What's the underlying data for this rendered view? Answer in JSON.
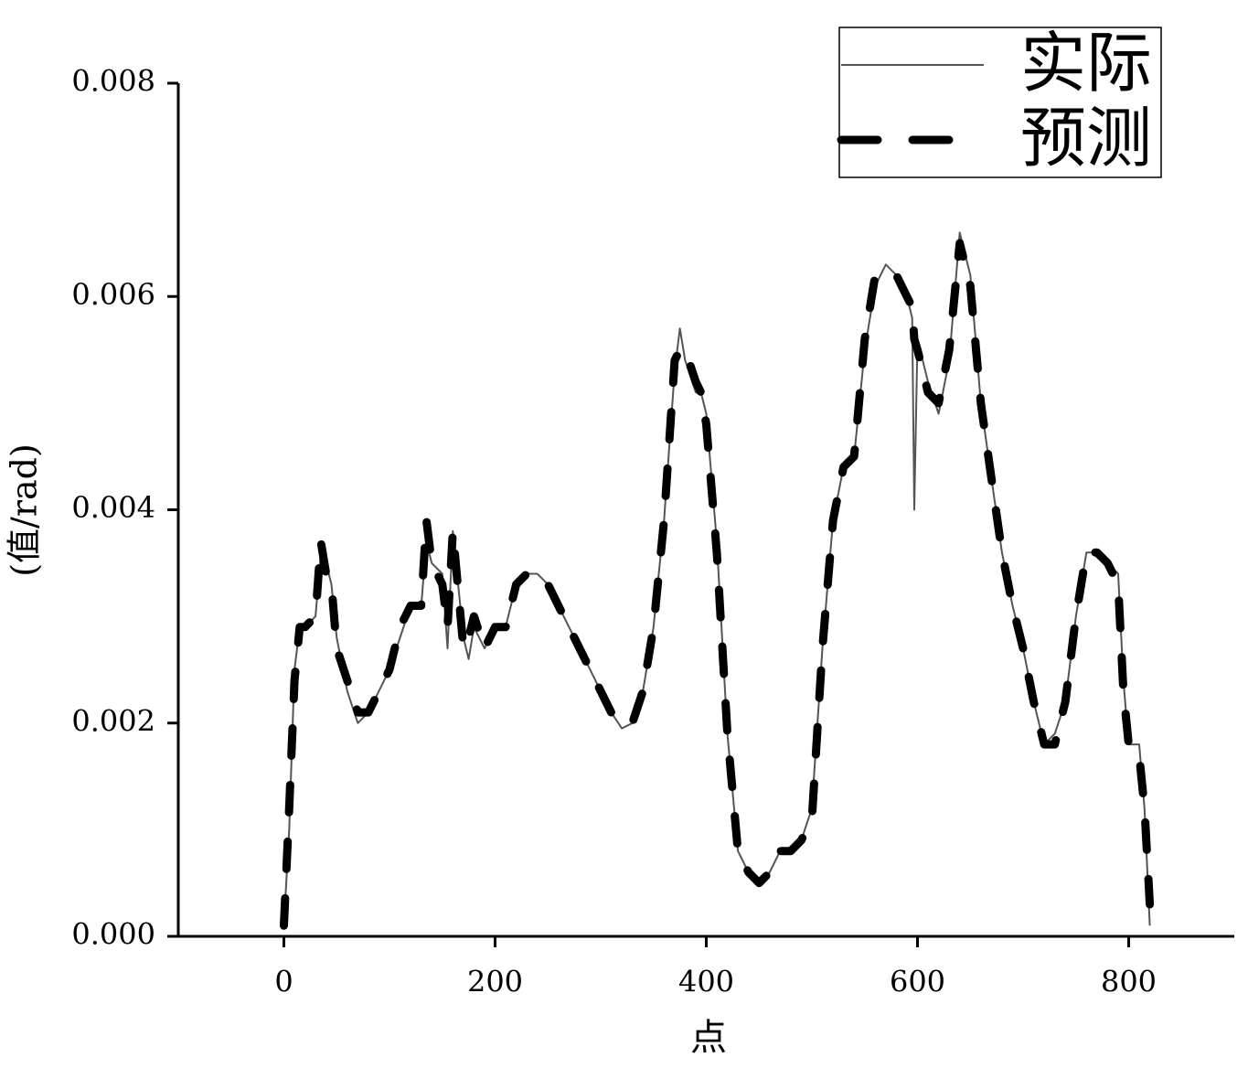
{
  "chart_data": {
    "type": "line",
    "x_label": "点",
    "y_label": "(值/rad)",
    "x": [
      0,
      5,
      10,
      15,
      20,
      30,
      35,
      40,
      45,
      50,
      60,
      70,
      80,
      90,
      100,
      110,
      120,
      130,
      135,
      140,
      150,
      155,
      160,
      170,
      175,
      180,
      190,
      200,
      210,
      220,
      230,
      240,
      250,
      260,
      270,
      280,
      290,
      300,
      310,
      320,
      330,
      340,
      350,
      360,
      370,
      375,
      380,
      390,
      395,
      400,
      410,
      420,
      430,
      440,
      450,
      460,
      470,
      480,
      490,
      500,
      510,
      520,
      530,
      540,
      550,
      560,
      570,
      580,
      590,
      595,
      597,
      600,
      610,
      620,
      630,
      640,
      650,
      660,
      670,
      680,
      690,
      700,
      710,
      720,
      730,
      740,
      750,
      760,
      770,
      780,
      790,
      795,
      800,
      810,
      815,
      820
    ],
    "series": [
      {
        "name": "实际",
        "color": "#555555",
        "line_style": "solid",
        "values": [
          0.0001,
          0.001,
          0.0025,
          0.0029,
          0.0029,
          0.003,
          0.0036,
          0.0035,
          0.0033,
          0.0028,
          0.0023,
          0.002,
          0.0021,
          0.0023,
          0.0025,
          0.0028,
          0.0031,
          0.0031,
          0.0037,
          0.0035,
          0.0034,
          0.0027,
          0.0038,
          0.0028,
          0.0026,
          0.0029,
          0.0027,
          0.0029,
          0.0029,
          0.0033,
          0.0034,
          0.0034,
          0.0033,
          0.0031,
          0.0029,
          0.0027,
          0.0025,
          0.0023,
          0.0021,
          0.00195,
          0.002,
          0.0023,
          0.0029,
          0.0039,
          0.0053,
          0.0057,
          0.0054,
          0.0051,
          0.0051,
          0.0049,
          0.0037,
          0.0019,
          0.0008,
          0.0006,
          0.0005,
          0.0006,
          0.0008,
          0.0008,
          0.0009,
          0.0012,
          0.0027,
          0.0039,
          0.0044,
          0.0045,
          0.0055,
          0.0061,
          0.0063,
          0.0062,
          0.006,
          0.0058,
          0.004,
          0.0056,
          0.0052,
          0.0049,
          0.0054,
          0.0066,
          0.0062,
          0.005,
          0.0043,
          0.0036,
          0.0031,
          0.0027,
          0.0022,
          0.0018,
          0.0019,
          0.0022,
          0.003,
          0.0036,
          0.0036,
          0.0035,
          0.0034,
          0.0024,
          0.0018,
          0.0018,
          0.0012,
          0.0001
        ]
      },
      {
        "name": "预测",
        "color": "#000000",
        "line_style": "dashed",
        "values": [
          0.0001,
          0.0012,
          0.0024,
          0.0029,
          0.0029,
          0.003,
          0.0037,
          0.0034,
          0.0033,
          0.0027,
          0.0024,
          0.0021,
          0.0021,
          0.0023,
          0.0025,
          0.0029,
          0.0031,
          0.0031,
          0.0039,
          0.0035,
          0.0033,
          0.0029,
          0.0038,
          0.0027,
          0.0028,
          0.003,
          0.0027,
          0.0029,
          0.0029,
          0.0033,
          0.0034,
          0.0034,
          0.0033,
          0.0031,
          0.0029,
          0.0027,
          0.0025,
          0.0023,
          0.0021,
          0.002,
          0.002,
          0.0023,
          0.0029,
          0.0039,
          0.0054,
          0.0055,
          0.0055,
          0.0052,
          0.0051,
          0.0048,
          0.0036,
          0.0019,
          0.0008,
          0.0006,
          0.0005,
          0.0006,
          0.0008,
          0.0008,
          0.0009,
          0.0011,
          0.0027,
          0.0039,
          0.0044,
          0.0045,
          0.0056,
          0.0062,
          0.0062,
          0.0062,
          0.006,
          0.0059,
          0.0056,
          0.0055,
          0.0051,
          0.005,
          0.0055,
          0.0065,
          0.0061,
          0.005,
          0.0043,
          0.0036,
          0.0031,
          0.0027,
          0.0022,
          0.0018,
          0.0018,
          0.0022,
          0.003,
          0.0036,
          0.0036,
          0.0035,
          0.0033,
          0.0023,
          0.0018,
          0.0017,
          0.0012,
          0.0003
        ]
      }
    ],
    "xlim": [
      -100,
      900
    ],
    "xticks": [
      0,
      200,
      400,
      600,
      800
    ],
    "ylim": [
      0,
      0.008
    ],
    "yticks": [
      {
        "value": 0,
        "label": "0.000"
      },
      0.002,
      0.004,
      0.006,
      0.008
    ],
    "legend": "top-right"
  }
}
